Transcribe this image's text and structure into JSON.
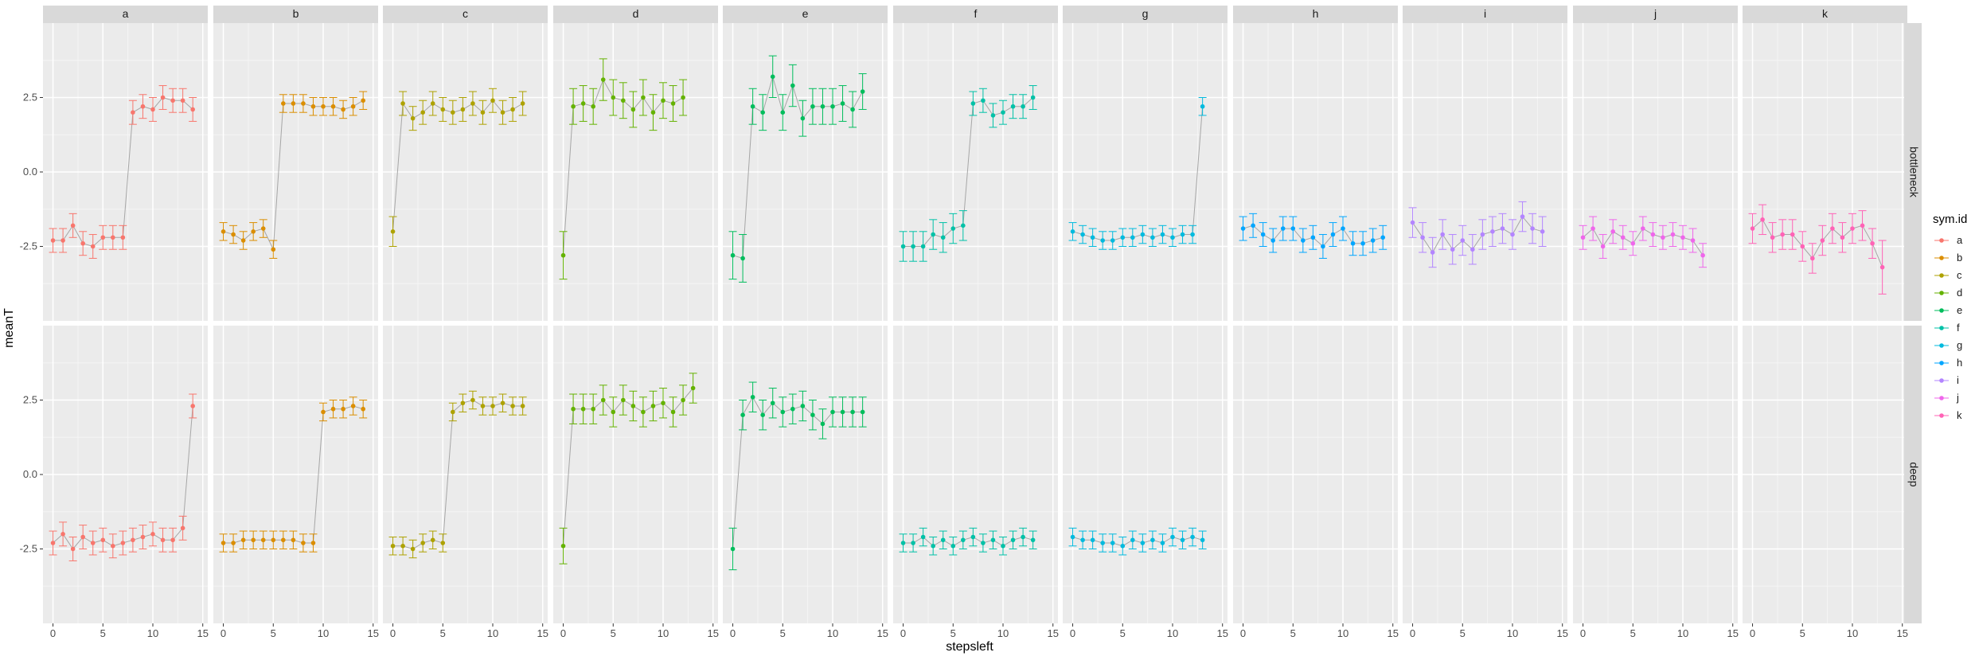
{
  "chart_data": {
    "type": "line",
    "xlabel": "stepsleft",
    "ylabel": "meanT",
    "xlim": [
      -1.0,
      15.5
    ],
    "ylim": [
      -5.0,
      5.0
    ],
    "x_ticks": [
      0,
      5,
      10,
      15
    ],
    "y_ticks": [
      -2.5,
      0.0,
      2.5
    ],
    "y_tick_labels": [
      "-2.5",
      "0.0",
      "2.5"
    ],
    "grid": true,
    "legend_position": "right",
    "legend_title": "sym.id",
    "col_facets": [
      "a",
      "b",
      "c",
      "d",
      "e",
      "f",
      "g",
      "h",
      "i",
      "j",
      "k"
    ],
    "row_facets": [
      "bottleneck",
      "deep"
    ],
    "colors": {
      "a": "#F8766D",
      "b": "#DB8E00",
      "c": "#AEA200",
      "d": "#64B200",
      "e": "#00BD5C",
      "f": "#00C1A7",
      "g": "#00BADE",
      "h": "#00A6FF",
      "i": "#B385FF",
      "j": "#EF67EB",
      "k": "#FF63B6"
    },
    "series": [
      {
        "name": "a",
        "panel": "bottleneck",
        "x": [
          0,
          1,
          2,
          3,
          4,
          5,
          6,
          7,
          8,
          9,
          10,
          11,
          12,
          13,
          14
        ],
        "y": [
          -2.3,
          -2.3,
          -1.8,
          -2.4,
          -2.5,
          -2.2,
          -2.2,
          -2.2,
          2.0,
          2.2,
          2.1,
          2.5,
          2.4,
          2.4,
          2.1
        ],
        "err": [
          0.4,
          0.4,
          0.4,
          0.4,
          0.4,
          0.4,
          0.4,
          0.4,
          0.4,
          0.4,
          0.4,
          0.4,
          0.4,
          0.4,
          0.4
        ]
      },
      {
        "name": "b",
        "panel": "bottleneck",
        "x": [
          0,
          1,
          2,
          3,
          4,
          5,
          6,
          7,
          8,
          9,
          10,
          11,
          12,
          13,
          14
        ],
        "y": [
          -2.0,
          -2.1,
          -2.3,
          -2.0,
          -1.9,
          -2.6,
          2.3,
          2.3,
          2.3,
          2.2,
          2.2,
          2.2,
          2.1,
          2.2,
          2.4
        ],
        "err": [
          0.3,
          0.3,
          0.3,
          0.3,
          0.3,
          0.3,
          0.3,
          0.3,
          0.3,
          0.3,
          0.3,
          0.3,
          0.3,
          0.3,
          0.3
        ]
      },
      {
        "name": "c",
        "panel": "bottleneck",
        "x": [
          0,
          1,
          2,
          3,
          4,
          5,
          6,
          7,
          8,
          9,
          10,
          11,
          12,
          13
        ],
        "y": [
          -2.0,
          2.3,
          1.8,
          2.0,
          2.3,
          2.1,
          2.0,
          2.1,
          2.3,
          2.0,
          2.4,
          2.0,
          2.1,
          2.3
        ],
        "err": [
          0.5,
          0.4,
          0.4,
          0.4,
          0.4,
          0.4,
          0.4,
          0.4,
          0.4,
          0.4,
          0.4,
          0.4,
          0.4,
          0.4
        ]
      },
      {
        "name": "d",
        "panel": "bottleneck",
        "x": [
          0,
          1,
          2,
          3,
          4,
          5,
          6,
          7,
          8,
          9,
          10,
          11,
          12
        ],
        "y": [
          -2.8,
          2.2,
          2.3,
          2.2,
          3.1,
          2.5,
          2.4,
          2.1,
          2.5,
          2.0,
          2.4,
          2.3,
          2.5
        ],
        "err": [
          0.8,
          0.6,
          0.6,
          0.6,
          0.7,
          0.6,
          0.6,
          0.6,
          0.6,
          0.6,
          0.6,
          0.6,
          0.6
        ]
      },
      {
        "name": "e",
        "panel": "bottleneck",
        "x": [
          0,
          1,
          2,
          3,
          4,
          5,
          6,
          7,
          8,
          9,
          10,
          11,
          12,
          13
        ],
        "y": [
          -2.8,
          -2.9,
          2.2,
          2.0,
          3.2,
          2.0,
          2.9,
          1.8,
          2.2,
          2.2,
          2.2,
          2.3,
          2.1,
          2.7
        ],
        "err": [
          0.8,
          0.8,
          0.6,
          0.6,
          0.7,
          0.6,
          0.7,
          0.6,
          0.6,
          0.6,
          0.6,
          0.6,
          0.6,
          0.6
        ]
      },
      {
        "name": "f",
        "panel": "bottleneck",
        "x": [
          0,
          1,
          2,
          3,
          4,
          5,
          6,
          7,
          8,
          9,
          10,
          11,
          12,
          13
        ],
        "y": [
          -2.5,
          -2.5,
          -2.5,
          -2.1,
          -2.2,
          -1.9,
          -1.8,
          2.3,
          2.4,
          1.9,
          2.0,
          2.2,
          2.2,
          2.5
        ],
        "err": [
          0.5,
          0.5,
          0.5,
          0.5,
          0.5,
          0.5,
          0.5,
          0.4,
          0.4,
          0.4,
          0.4,
          0.4,
          0.4,
          0.4
        ]
      },
      {
        "name": "g",
        "panel": "bottleneck",
        "x": [
          0,
          1,
          2,
          3,
          4,
          5,
          6,
          7,
          8,
          9,
          10,
          11,
          12,
          13
        ],
        "y": [
          -2.0,
          -2.1,
          -2.2,
          -2.3,
          -2.3,
          -2.2,
          -2.2,
          -2.1,
          -2.2,
          -2.1,
          -2.2,
          -2.1,
          -2.1,
          2.2
        ],
        "err": [
          0.3,
          0.3,
          0.3,
          0.3,
          0.3,
          0.3,
          0.3,
          0.3,
          0.3,
          0.3,
          0.3,
          0.3,
          0.3,
          0.3
        ]
      },
      {
        "name": "h",
        "panel": "bottleneck",
        "x": [
          0,
          1,
          2,
          3,
          4,
          5,
          6,
          7,
          8,
          9,
          10,
          11,
          12,
          13,
          14
        ],
        "y": [
          -1.9,
          -1.8,
          -2.1,
          -2.3,
          -1.9,
          -1.9,
          -2.3,
          -2.2,
          -2.5,
          -2.1,
          -1.9,
          -2.4,
          -2.4,
          -2.3,
          -2.2
        ],
        "err": [
          0.4,
          0.4,
          0.4,
          0.4,
          0.4,
          0.4,
          0.4,
          0.4,
          0.4,
          0.4,
          0.4,
          0.4,
          0.4,
          0.4,
          0.4
        ]
      },
      {
        "name": "i",
        "panel": "bottleneck",
        "x": [
          0,
          1,
          2,
          3,
          4,
          5,
          6,
          7,
          8,
          9,
          10,
          11,
          12,
          13
        ],
        "y": [
          -1.7,
          -2.2,
          -2.7,
          -2.1,
          -2.6,
          -2.3,
          -2.6,
          -2.1,
          -2.0,
          -1.9,
          -2.1,
          -1.5,
          -1.9,
          -2.0
        ],
        "err": [
          0.5,
          0.5,
          0.5,
          0.5,
          0.5,
          0.5,
          0.5,
          0.5,
          0.5,
          0.5,
          0.5,
          0.5,
          0.5,
          0.5
        ]
      },
      {
        "name": "j",
        "panel": "bottleneck",
        "x": [
          0,
          1,
          2,
          3,
          4,
          5,
          6,
          7,
          8,
          9,
          10,
          11,
          12
        ],
        "y": [
          -2.2,
          -1.9,
          -2.5,
          -2.0,
          -2.2,
          -2.4,
          -1.9,
          -2.1,
          -2.2,
          -2.1,
          -2.2,
          -2.3,
          -2.8
        ],
        "err": [
          0.4,
          0.4,
          0.4,
          0.4,
          0.4,
          0.4,
          0.4,
          0.4,
          0.4,
          0.4,
          0.4,
          0.4,
          0.4
        ]
      },
      {
        "name": "k",
        "panel": "bottleneck",
        "x": [
          0,
          1,
          2,
          3,
          4,
          5,
          6,
          7,
          8,
          9,
          10,
          11,
          12,
          13
        ],
        "y": [
          -1.9,
          -1.6,
          -2.2,
          -2.1,
          -2.1,
          -2.5,
          -2.9,
          -2.3,
          -1.9,
          -2.2,
          -1.9,
          -1.8,
          -2.4,
          -3.2
        ],
        "err": [
          0.5,
          0.5,
          0.5,
          0.5,
          0.5,
          0.5,
          0.5,
          0.5,
          0.5,
          0.5,
          0.5,
          0.5,
          0.5,
          0.9
        ]
      },
      {
        "name": "a",
        "panel": "deep",
        "x": [
          0,
          1,
          2,
          3,
          4,
          5,
          6,
          7,
          8,
          9,
          10,
          11,
          12,
          13,
          14
        ],
        "y": [
          -2.3,
          -2.0,
          -2.5,
          -2.1,
          -2.3,
          -2.2,
          -2.4,
          -2.3,
          -2.2,
          -2.1,
          -2.0,
          -2.2,
          -2.2,
          -1.8,
          2.3
        ],
        "err": [
          0.4,
          0.4,
          0.4,
          0.4,
          0.4,
          0.4,
          0.4,
          0.4,
          0.4,
          0.4,
          0.4,
          0.4,
          0.4,
          0.4,
          0.4
        ]
      },
      {
        "name": "b",
        "panel": "deep",
        "x": [
          0,
          1,
          2,
          3,
          4,
          5,
          6,
          7,
          8,
          9,
          10,
          11,
          12,
          13,
          14
        ],
        "y": [
          -2.3,
          -2.3,
          -2.2,
          -2.2,
          -2.2,
          -2.2,
          -2.2,
          -2.2,
          -2.3,
          -2.3,
          2.1,
          2.2,
          2.2,
          2.3,
          2.2
        ],
        "err": [
          0.3,
          0.3,
          0.3,
          0.3,
          0.3,
          0.3,
          0.3,
          0.3,
          0.3,
          0.3,
          0.3,
          0.3,
          0.3,
          0.3,
          0.3
        ]
      },
      {
        "name": "c",
        "panel": "deep",
        "x": [
          0,
          1,
          2,
          3,
          4,
          5,
          6,
          7,
          8,
          9,
          10,
          11,
          12,
          13
        ],
        "y": [
          -2.4,
          -2.4,
          -2.5,
          -2.3,
          -2.2,
          -2.3,
          2.1,
          2.4,
          2.5,
          2.3,
          2.3,
          2.4,
          2.3,
          2.3
        ],
        "err": [
          0.3,
          0.3,
          0.3,
          0.3,
          0.3,
          0.3,
          0.3,
          0.3,
          0.3,
          0.3,
          0.3,
          0.3,
          0.3,
          0.3
        ]
      },
      {
        "name": "d",
        "panel": "deep",
        "x": [
          0,
          1,
          2,
          3,
          4,
          5,
          6,
          7,
          8,
          9,
          10,
          11,
          12,
          13
        ],
        "y": [
          -2.4,
          2.2,
          2.2,
          2.2,
          2.5,
          2.1,
          2.5,
          2.3,
          2.1,
          2.3,
          2.4,
          2.1,
          2.5,
          2.9
        ],
        "err": [
          0.6,
          0.5,
          0.5,
          0.5,
          0.5,
          0.5,
          0.5,
          0.5,
          0.5,
          0.5,
          0.5,
          0.5,
          0.5,
          0.5
        ]
      },
      {
        "name": "e",
        "panel": "deep",
        "x": [
          0,
          1,
          2,
          3,
          4,
          5,
          6,
          7,
          8,
          9,
          10,
          11,
          12,
          13
        ],
        "y": [
          -2.5,
          2.0,
          2.6,
          2.0,
          2.4,
          2.1,
          2.2,
          2.3,
          2.0,
          1.7,
          2.1,
          2.1,
          2.1,
          2.1
        ],
        "err": [
          0.7,
          0.5,
          0.5,
          0.5,
          0.5,
          0.5,
          0.5,
          0.5,
          0.5,
          0.5,
          0.5,
          0.5,
          0.5,
          0.5
        ]
      },
      {
        "name": "f",
        "panel": "deep",
        "x": [
          0,
          1,
          2,
          3,
          4,
          5,
          6,
          7,
          8,
          9,
          10,
          11,
          12,
          13
        ],
        "y": [
          -2.3,
          -2.3,
          -2.1,
          -2.4,
          -2.2,
          -2.4,
          -2.2,
          -2.1,
          -2.3,
          -2.2,
          -2.4,
          -2.2,
          -2.1,
          -2.2
        ],
        "err": [
          0.3,
          0.3,
          0.3,
          0.3,
          0.3,
          0.3,
          0.3,
          0.3,
          0.3,
          0.3,
          0.3,
          0.3,
          0.3,
          0.3
        ]
      },
      {
        "name": "g",
        "panel": "deep",
        "x": [
          0,
          1,
          2,
          3,
          4,
          5,
          6,
          7,
          8,
          9,
          10,
          11,
          12,
          13
        ],
        "y": [
          -2.1,
          -2.2,
          -2.2,
          -2.3,
          -2.3,
          -2.4,
          -2.2,
          -2.3,
          -2.2,
          -2.3,
          -2.1,
          -2.2,
          -2.1,
          -2.2
        ],
        "err": [
          0.3,
          0.3,
          0.3,
          0.3,
          0.3,
          0.3,
          0.3,
          0.3,
          0.3,
          0.3,
          0.3,
          0.3,
          0.3,
          0.3
        ]
      }
    ]
  }
}
